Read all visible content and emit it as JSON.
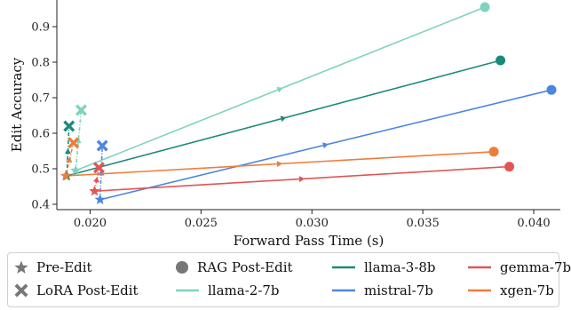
{
  "chart_data": {
    "type": "scatter",
    "xlabel": "Forward Pass Time (s)",
    "ylabel": "Edit Accuracy",
    "xlim": [
      0.0185,
      0.0412
    ],
    "ylim": [
      0.385,
      0.975
    ],
    "xticks": [
      "0.020",
      "0.025",
      "0.030",
      "0.035",
      "0.040"
    ],
    "xtick_values": [
      0.02,
      0.025,
      0.03,
      0.035,
      0.04
    ],
    "yticks": [
      "0.4",
      "0.5",
      "0.6",
      "0.7",
      "0.8",
      "0.9"
    ],
    "ytick_values": [
      0.4,
      0.5,
      0.6,
      0.7,
      0.8,
      0.9
    ],
    "grid": false,
    "legend_position": "bottom",
    "marker_legend": [
      {
        "label": "Pre-Edit",
        "marker": "star"
      },
      {
        "label": "LoRA Post-Edit",
        "marker": "x"
      },
      {
        "label": "RAG Post-Edit",
        "marker": "circle"
      }
    ],
    "series": [
      {
        "name": "llama-3-8b",
        "color": "#1b8a7a",
        "points": {
          "pre_edit": {
            "x": 0.01895,
            "y": 0.48
          },
          "lora_post_edit": {
            "x": 0.01905,
            "y": 0.62
          },
          "rag_post_edit": {
            "x": 0.0385,
            "y": 0.805
          }
        }
      },
      {
        "name": "llama-2-7b",
        "color": "#7fd3bd",
        "points": {
          "pre_edit": {
            "x": 0.01935,
            "y": 0.495
          },
          "lora_post_edit": {
            "x": 0.0196,
            "y": 0.665
          },
          "rag_post_edit": {
            "x": 0.0378,
            "y": 0.955
          }
        }
      },
      {
        "name": "mistral-7b",
        "color": "#4c86e0",
        "points": {
          "pre_edit": {
            "x": 0.02045,
            "y": 0.413
          },
          "lora_post_edit": {
            "x": 0.02055,
            "y": 0.565
          },
          "rag_post_edit": {
            "x": 0.0408,
            "y": 0.722
          }
        }
      },
      {
        "name": "gemma-7b",
        "color": "#e25555",
        "points": {
          "pre_edit": {
            "x": 0.0202,
            "y": 0.437
          },
          "lora_post_edit": {
            "x": 0.0204,
            "y": 0.503
          },
          "rag_post_edit": {
            "x": 0.0389,
            "y": 0.506
          }
        }
      },
      {
        "name": "xgen-7b",
        "color": "#ee7d3b",
        "points": {
          "pre_edit": {
            "x": 0.0189,
            "y": 0.48
          },
          "lora_post_edit": {
            "x": 0.01925,
            "y": 0.573
          },
          "rag_post_edit": {
            "x": 0.0382,
            "y": 0.548
          }
        }
      }
    ]
  }
}
